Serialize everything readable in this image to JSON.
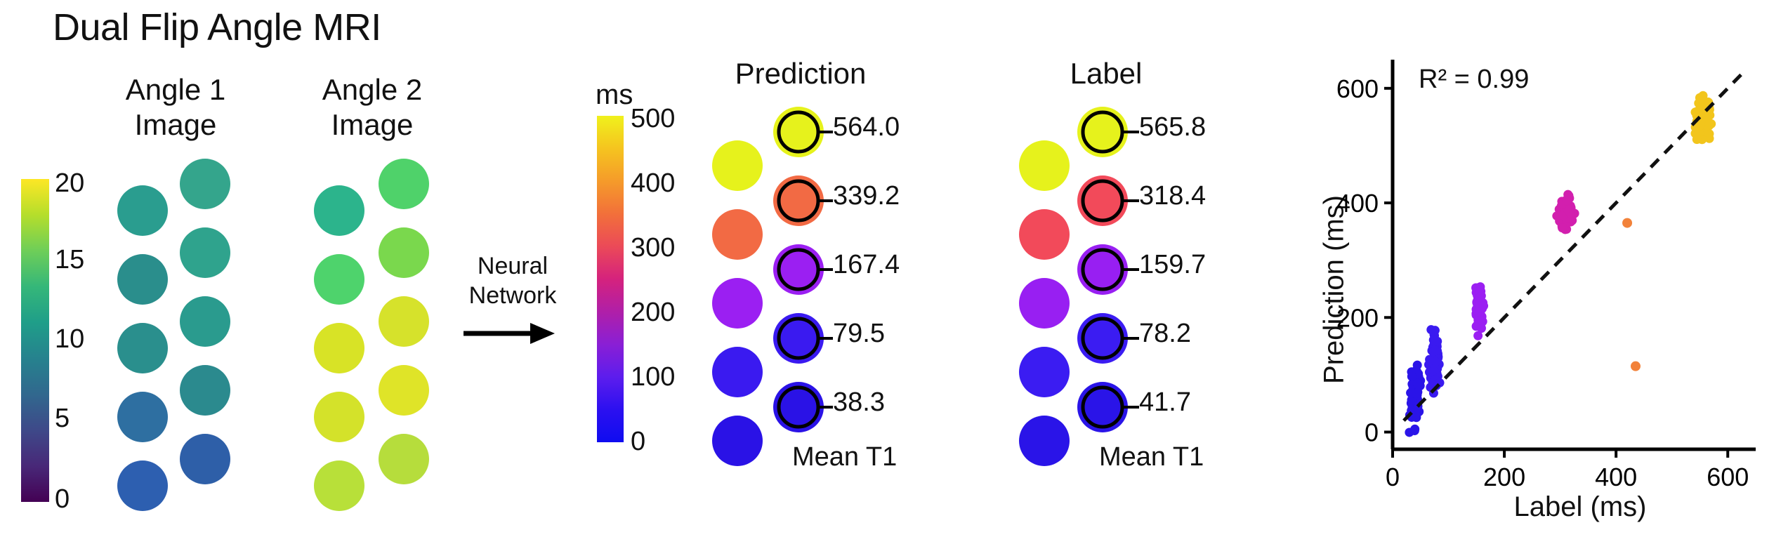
{
  "figure": {
    "title": "Dual Flip Angle MRI",
    "input_columns": [
      {
        "line1": "Angle 1",
        "line2": "Image"
      },
      {
        "line1": "Angle 2",
        "line2": "Image"
      }
    ],
    "input_colorbar": {
      "ticks": [
        "20",
        "15",
        "10",
        "5",
        "0"
      ],
      "colormap": "viridis"
    },
    "arrow_label": {
      "line1": "Neural",
      "line2": "Network"
    },
    "t1_colorbar": {
      "unit": "ms",
      "ticks": [
        "500",
        "400",
        "300",
        "200",
        "100",
        "0"
      ],
      "colormap": "plasma-blue"
    },
    "prediction_panel": {
      "title": "Prediction",
      "values": [
        "564.0",
        "339.2",
        "167.4",
        "79.5",
        "38.3"
      ],
      "colors": [
        "#e6f21c",
        "#f26a44",
        "#9b1ff2",
        "#3a1af0",
        "#2a12e6"
      ],
      "footer": "Mean T1"
    },
    "label_panel": {
      "title": "Label",
      "values": [
        "565.8",
        "318.4",
        "159.7",
        "78.2",
        "41.7"
      ],
      "colors": [
        "#e6f21c",
        "#f24a5a",
        "#981ff2",
        "#3b1cf2",
        "#2a14e8"
      ],
      "footer": "Mean T1"
    },
    "left_phantom_colors": {
      "angle1_left": [
        "#2a9d8f",
        "#2a8e8c",
        "#2a8f8d",
        "#2e6fa1",
        "#2d5fb0"
      ],
      "angle1_right": [
        "#34a58c",
        "#2fa38d",
        "#2a9b8e",
        "#2b8a8e",
        "#2e5fa8"
      ],
      "angle2_left": [
        "#2cb48c",
        "#4ed36c",
        "#d8e326",
        "#d4e22a",
        "#b8e039"
      ],
      "angle2_right": [
        "#4fd26a",
        "#7ad84d",
        "#d6e22b",
        "#dfe428",
        "#b6dd3c"
      ]
    }
  },
  "chart_data": {
    "type": "scatter",
    "title": "",
    "annotation": "R² = 0.99",
    "xlabel": "Label (ms)",
    "ylabel": "Prediction (ms)",
    "xlim": [
      0,
      650
    ],
    "ylim": [
      -30,
      650
    ],
    "xticks": [
      0,
      200,
      400,
      600
    ],
    "yticks": [
      0,
      200,
      400,
      600
    ],
    "identity_line": true,
    "clusters": [
      {
        "x_center": 40,
        "x_spread": 12,
        "y_center": 60,
        "y_spread": 70,
        "n": 80,
        "color": "#2a14e8"
      },
      {
        "x_center": 75,
        "x_spread": 12,
        "y_center": 120,
        "y_spread": 75,
        "n": 80,
        "color": "#3a1af0"
      },
      {
        "x_center": 155,
        "x_spread": 10,
        "y_center": 215,
        "y_spread": 60,
        "n": 70,
        "color": "#9b1ff2"
      },
      {
        "x_center": 310,
        "x_spread": 20,
        "y_center": 380,
        "y_spread": 40,
        "n": 70,
        "color": "#d21fae"
      },
      {
        "x_center": 555,
        "x_spread": 20,
        "y_center": 545,
        "y_spread": 50,
        "n": 90,
        "color": "#f2c51c"
      }
    ],
    "outliers": [
      {
        "x": 420,
        "y": 365,
        "color": "#f2823a"
      },
      {
        "x": 435,
        "y": 115,
        "color": "#f2823a"
      }
    ]
  }
}
